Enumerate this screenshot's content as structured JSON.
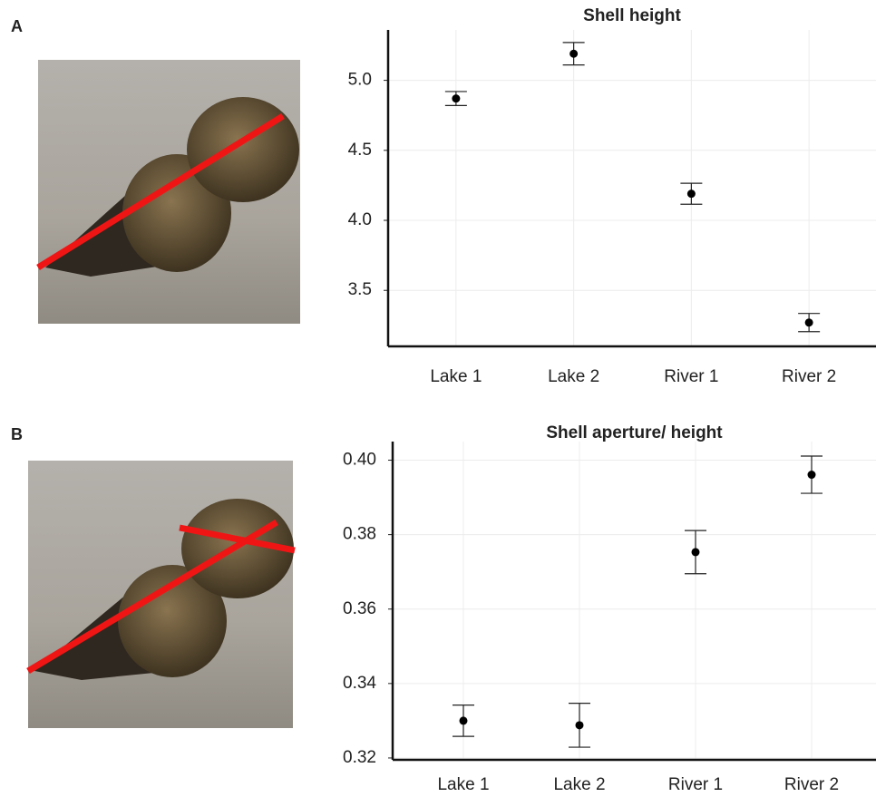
{
  "chart_data": [
    {
      "type": "errorbar",
      "panel_label": "A",
      "title": "Shell height",
      "categories": [
        "Lake 1",
        "Lake 2",
        "River 1",
        "River 2"
      ],
      "values": [
        4.87,
        5.19,
        4.19,
        3.27
      ],
      "errors": [
        0.05,
        0.08,
        0.075,
        0.065
      ],
      "color": "#000000",
      "ylim": [
        3.1,
        5.36
      ],
      "yticks": [
        {
          "value": 3.5,
          "label": "3.5"
        },
        {
          "value": 4,
          "label": "4.0"
        },
        {
          "value": 4.5,
          "label": "4.5"
        },
        {
          "value": 5,
          "label": "5.0"
        }
      ],
      "grid": true
    },
    {
      "type": "errorbar",
      "panel_label": "B",
      "title": "Shell aperture/ height",
      "categories": [
        "Lake 1",
        "Lake 2",
        "River 1",
        "River 2"
      ],
      "values": [
        0.33,
        0.3288,
        0.3753,
        0.3961
      ],
      "errors": [
        0.0042,
        0.0059,
        0.0058,
        0.005
      ],
      "color": "#000000",
      "ylim": [
        0.3195,
        0.405
      ],
      "yticks": [
        0.32,
        0.34,
        0.36,
        0.38,
        {
          "value": 0.4,
          "label": "0.40"
        }
      ],
      "grid": true
    }
  ]
}
